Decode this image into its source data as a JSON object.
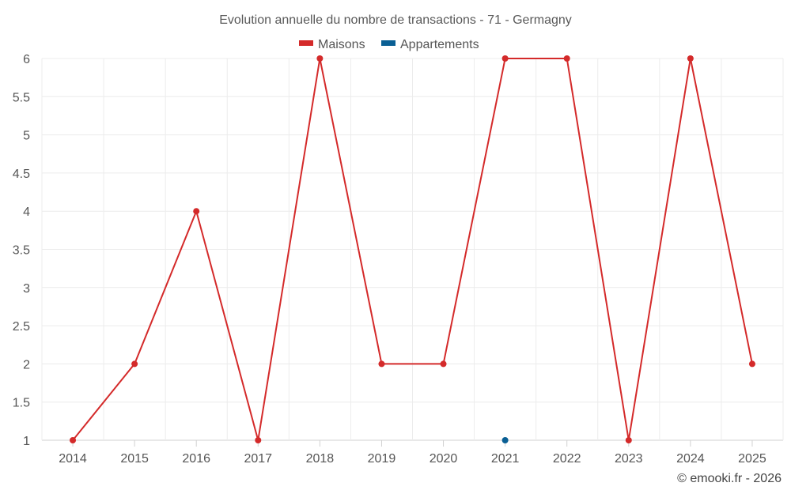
{
  "chart_data": {
    "type": "line",
    "title": "Evolution annuelle du nombre de transactions - 71 - Germagny",
    "categories": [
      "2014",
      "2015",
      "2016",
      "2017",
      "2018",
      "2019",
      "2020",
      "2021",
      "2022",
      "2023",
      "2024",
      "2025"
    ],
    "series": [
      {
        "name": "Maisons",
        "color": "#d42a2a",
        "values": [
          1,
          2,
          4,
          1,
          6,
          2,
          2,
          6,
          6,
          1,
          6,
          2
        ]
      },
      {
        "name": "Appartements",
        "color": "#0a5f94",
        "values": [
          null,
          null,
          null,
          null,
          null,
          null,
          null,
          1,
          null,
          null,
          null,
          null
        ]
      }
    ],
    "ylim": [
      1,
      6
    ],
    "yticks": [
      "1",
      "1.5",
      "2",
      "2.5",
      "3",
      "3.5",
      "4",
      "4.5",
      "5",
      "5.5",
      "6"
    ],
    "xlabel": "",
    "ylabel": "",
    "legend": "top-center",
    "grid": true
  },
  "credit": "© emooki.fr - 2026"
}
